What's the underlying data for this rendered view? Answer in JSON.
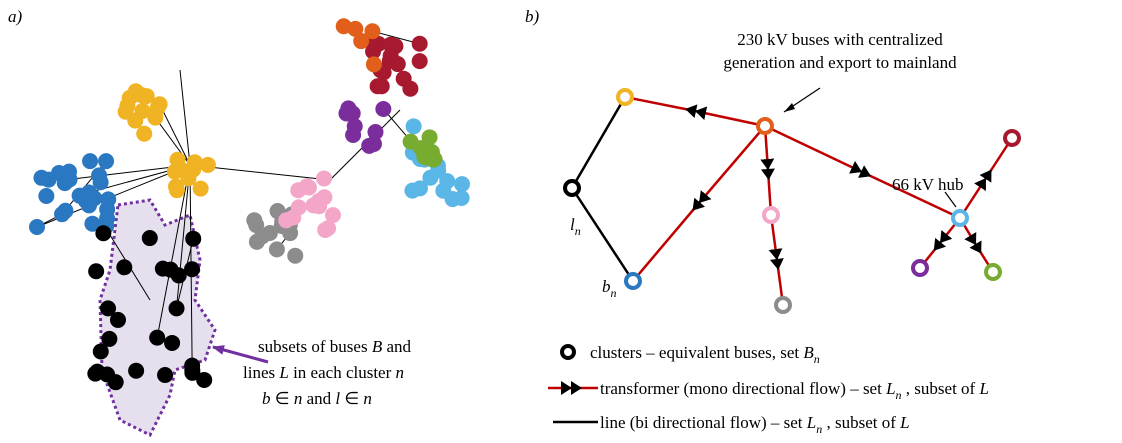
{
  "panel_a": {
    "label": "a)",
    "annotation": [
      [
        "subsets of buses ",
        "B",
        " and"
      ],
      [
        "lines ",
        "L",
        " in each cluster ",
        "n"
      ],
      [
        "b",
        " ∈ ",
        "n",
        " and ",
        "l",
        " ∈ ",
        "n"
      ]
    ]
  },
  "panel_b": {
    "label": "b)",
    "callout": [
      "230 kV buses with centralized",
      "generation and export to mainland"
    ],
    "hub_label": "66 kV hub",
    "line_label": [
      "l",
      "n"
    ],
    "bus_label": [
      "b",
      "n"
    ]
  },
  "legend": [
    [
      "clusters – equivalent buses, set ",
      "B",
      "n"
    ],
    [
      "transformer (mono directional flow) – set ",
      "L",
      "n",
      " , subset of ",
      "L"
    ],
    [
      "line (bi directional flow) – set ",
      "L",
      "n",
      " , subset of ",
      "L"
    ]
  ]
}
